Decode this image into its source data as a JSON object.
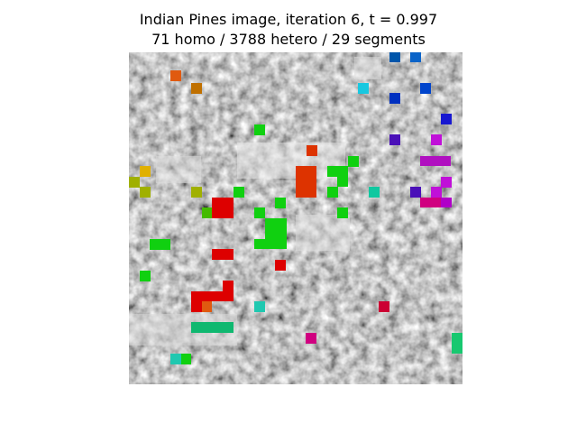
{
  "figure": {
    "title_line1": "Indian Pines image, iteration 6, t = 0.997",
    "title_line2": "71 homo / 3788 hetero / 29 segments"
  },
  "image": {
    "description": "grayscale hyperspectral band with colored segment overlays",
    "segment_colors": [
      "#e05a10",
      "#c07000",
      "#0055aa",
      "#0a63c8",
      "#18c8e0",
      "#0030c0",
      "#0044cc",
      "#1818d0",
      "#4a10b8",
      "#c010d8",
      "#b010c0",
      "#d00080",
      "#b000c8",
      "#e0b000",
      "#a0b000",
      "#20c020",
      "#10d010",
      "#44bb00",
      "#dd3300",
      "#dd0000",
      "#10c8a0",
      "#cc0033",
      "#20c8b0",
      "#10b870",
      "#18c870"
    ]
  }
}
